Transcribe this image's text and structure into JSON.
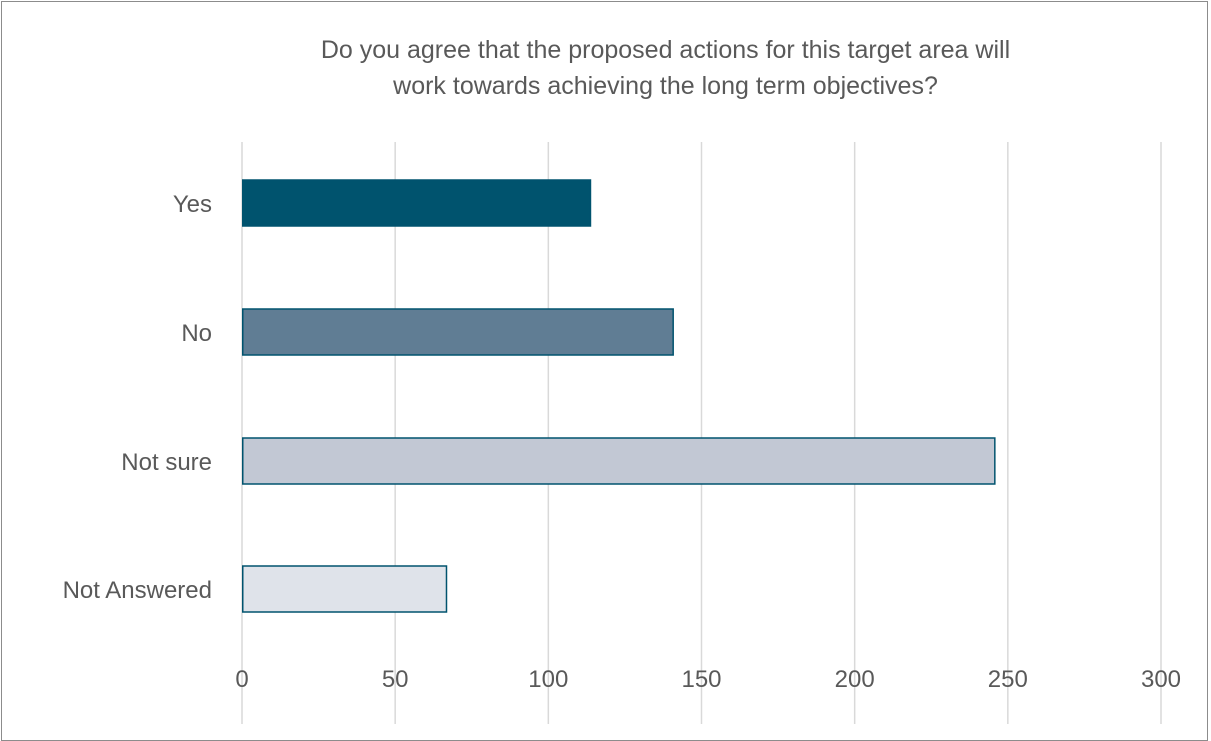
{
  "chart_data": {
    "type": "bar",
    "orientation": "horizontal",
    "title_lines": [
      "Do you agree that the proposed actions for this target area will",
      "work towards achieving the long term objectives?"
    ],
    "categories": [
      "Yes",
      "No",
      "Not sure",
      "Not Answered"
    ],
    "values": [
      114,
      141,
      246,
      67
    ],
    "bar_colors": [
      "#00536e",
      "#607d94",
      "#c2c8d4",
      "#dfe3ea"
    ],
    "bar_outline": "#00536e",
    "xlim": [
      0,
      300
    ],
    "xticks": [
      0,
      50,
      100,
      150,
      200,
      250,
      300
    ],
    "grid": true,
    "legend": "none"
  }
}
